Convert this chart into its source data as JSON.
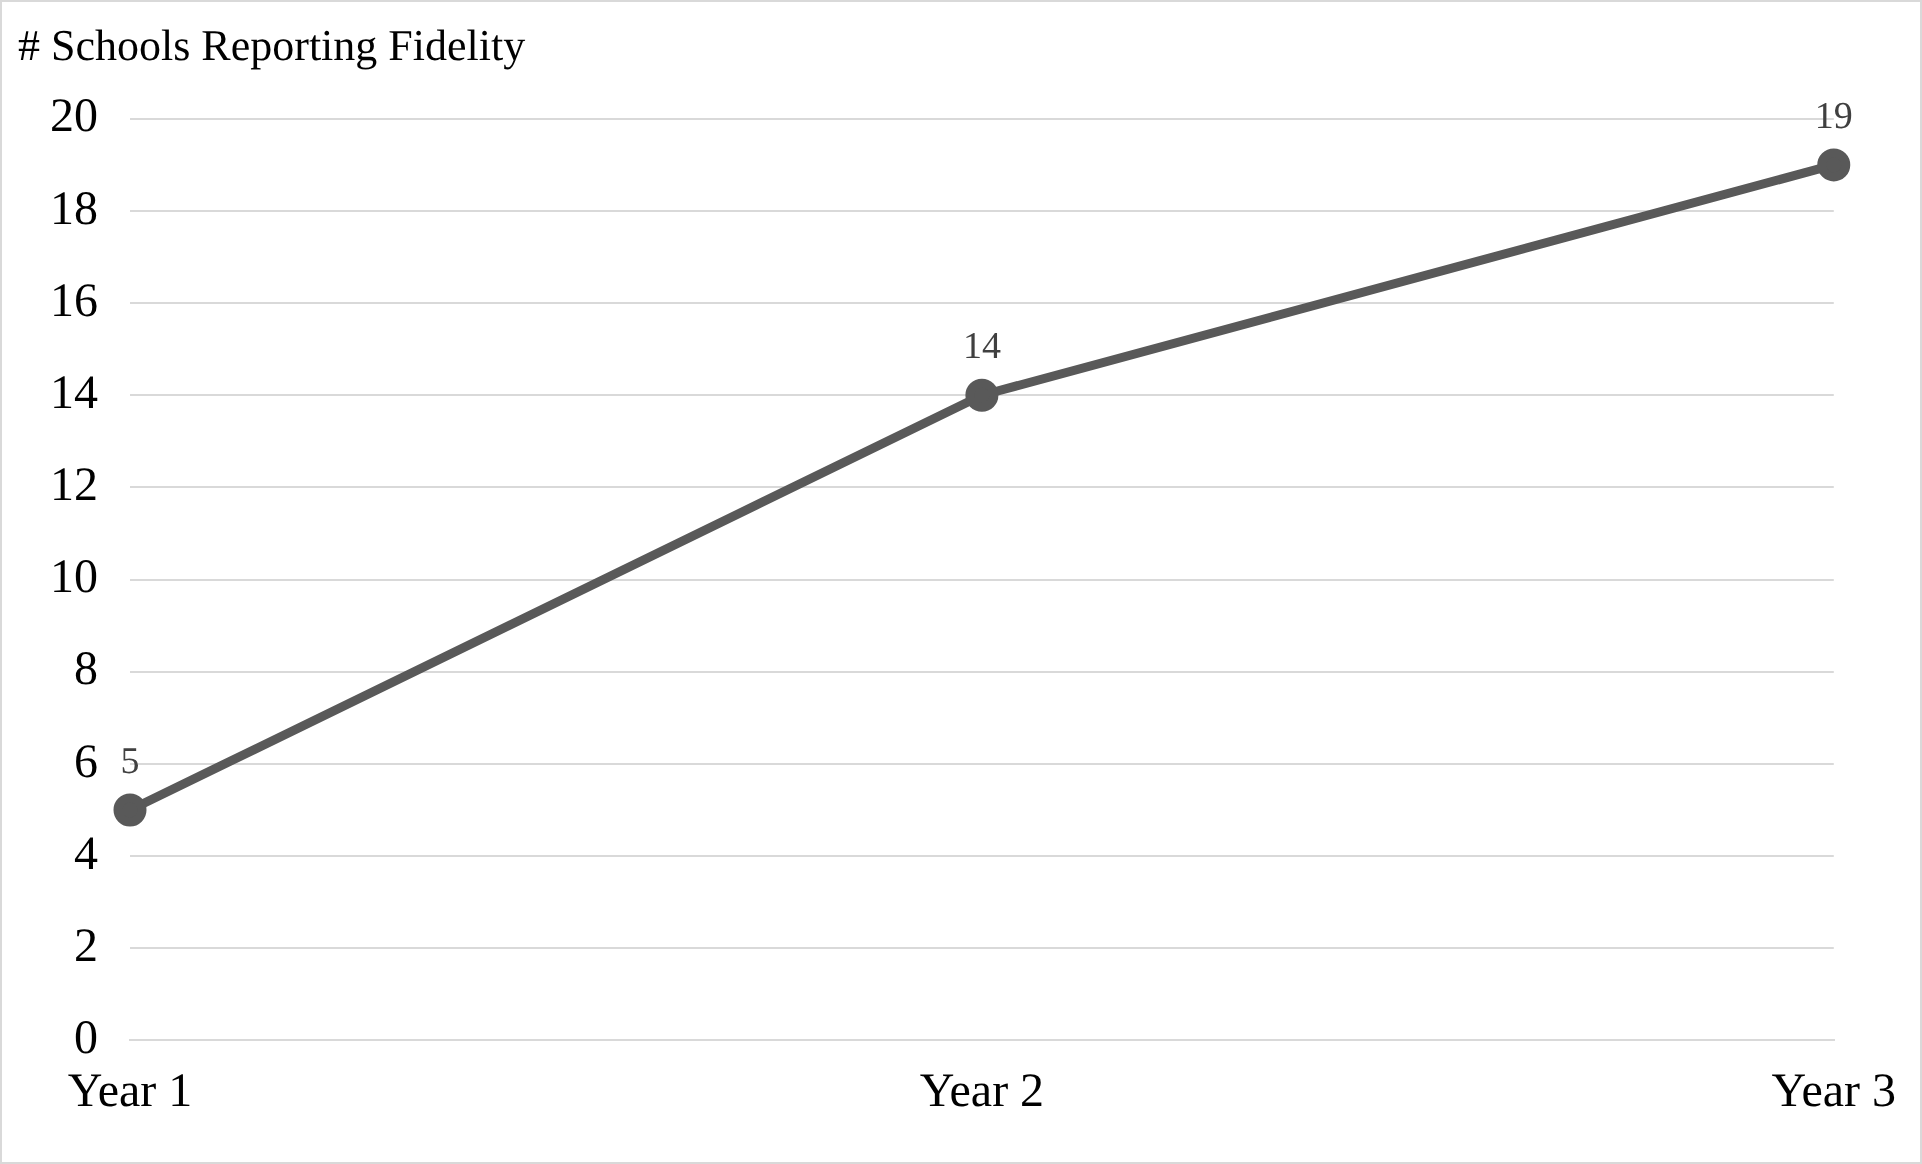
{
  "chart_data": {
    "type": "line",
    "title": "# Schools Reporting Fidelity",
    "categories": [
      "Year 1",
      "Year 2",
      "Year 3"
    ],
    "series": [
      {
        "color": "#595959",
        "values": [
          5,
          14,
          19
        ]
      }
    ],
    "ylim": [
      0,
      20
    ],
    "yticks": [
      0,
      2,
      4,
      6,
      8,
      10,
      12,
      14,
      16,
      18,
      20
    ],
    "grid": "y",
    "marker": "circle",
    "line_style": "solid",
    "data_labels": true,
    "legend": false
  }
}
